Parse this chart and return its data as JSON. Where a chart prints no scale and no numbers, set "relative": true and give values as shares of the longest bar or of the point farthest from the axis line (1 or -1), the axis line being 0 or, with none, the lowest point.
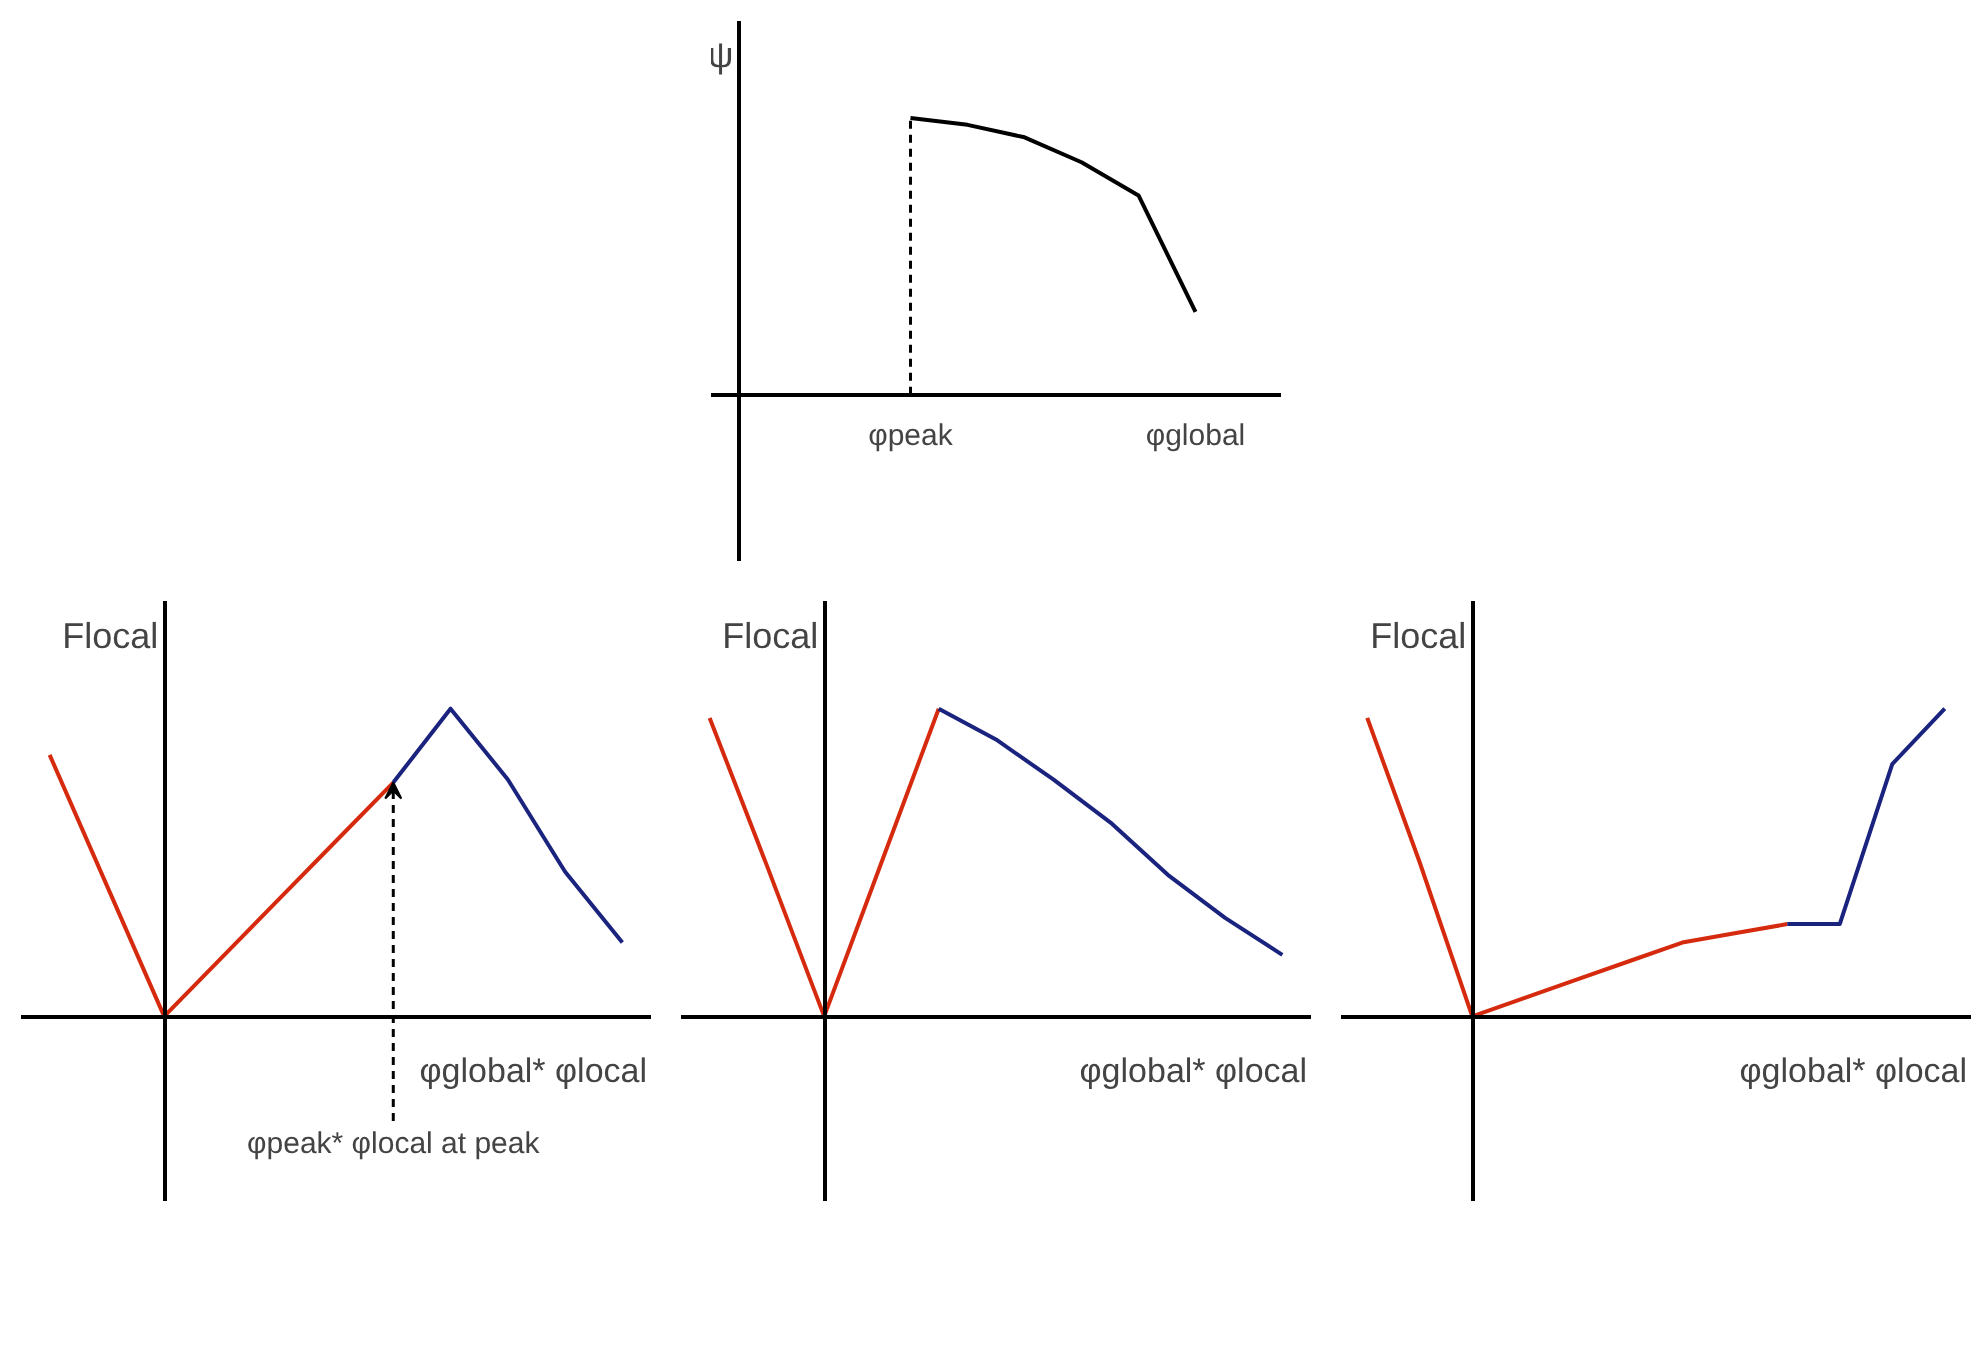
{
  "chart_data": [
    {
      "type": "line",
      "relative": true,
      "ylabel": "ψ",
      "categories": [
        null,
        null,
        null,
        "φpeak",
        null,
        null,
        null,
        null,
        "φglobal",
        null
      ],
      "series": [
        {
          "color": "#000000",
          "values": [
            null,
            null,
            null,
            1.0,
            0.975,
            0.93,
            0.84,
            0.72,
            0.3,
            null
          ]
        }
      ],
      "ref_lines": [
        {
          "axis": "x",
          "value": "φpeak",
          "line_style": "dashed",
          "color": "#000000"
        }
      ],
      "grid": false
    },
    {
      "type": "line",
      "relative": true,
      "ylabel": "Flocal",
      "xlabel": "φglobal* φlocal",
      "categories": [
        null,
        null,
        null,
        null,
        null,
        null,
        null,
        null,
        null,
        null,
        null
      ],
      "annotations": [
        {
          "text": "φpeak* φlocal at peak",
          "y": 0.76
        }
      ],
      "series": [
        {
          "color": "#d62a0e",
          "values": [
            0.85,
            0.425,
            0,
            0.19,
            0.38,
            0.57,
            0.76,
            null,
            null,
            null,
            null
          ]
        },
        {
          "color": "#1a237e",
          "values": [
            null,
            null,
            null,
            null,
            null,
            null,
            0.76,
            1.0,
            0.77,
            0.47,
            0.24
          ]
        }
      ],
      "grid": false
    },
    {
      "type": "line",
      "relative": true,
      "ylabel": "Flocal",
      "xlabel": "φglobal* φlocal",
      "categories": [
        null,
        null,
        null,
        null,
        null,
        null,
        null,
        null,
        null,
        null,
        null
      ],
      "series": [
        {
          "color": "#d62a0e",
          "values": [
            0.97,
            0.49,
            0,
            0.5,
            1.0,
            null,
            null,
            null,
            null,
            null,
            null
          ]
        },
        {
          "color": "#1a237e",
          "values": [
            null,
            null,
            null,
            null,
            1.0,
            0.9,
            0.77,
            0.63,
            0.46,
            0.32,
            0.2
          ]
        }
      ],
      "grid": false
    },
    {
      "type": "line",
      "relative": true,
      "ylabel": "Flocal",
      "xlabel": "φglobal* φlocal",
      "categories": [
        null,
        null,
        null,
        null,
        null,
        null,
        null,
        null,
        null,
        null,
        null,
        null
      ],
      "series": [
        {
          "color": "#d62a0e",
          "values": [
            0.97,
            0.5,
            0,
            0.06,
            0.12,
            0.18,
            0.24,
            0.27,
            0.3,
            null,
            null,
            null
          ]
        },
        {
          "color": "#1a237e",
          "values": [
            null,
            null,
            null,
            null,
            null,
            null,
            null,
            null,
            0.3,
            0.3,
            0.82,
            1.0
          ]
        }
      ],
      "grid": false
    }
  ]
}
